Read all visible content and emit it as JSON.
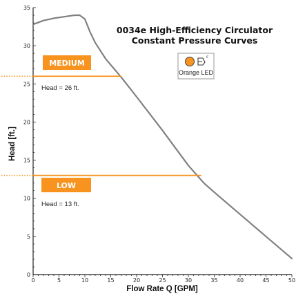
{
  "chart_data": {
    "type": "line",
    "title_line1": "0034e High-Efficiency Circulator",
    "title_line2": "Constant Pressure Curves",
    "xlabel": "Flow Rate Q [GPM]",
    "ylabel": "Head [ft.]",
    "xlim": [
      0,
      50
    ],
    "ylim": [
      0,
      35
    ],
    "x_ticks": [
      0,
      5,
      10,
      15,
      20,
      25,
      30,
      35,
      40,
      45,
      50
    ],
    "y_ticks": [
      0,
      5,
      10,
      15,
      20,
      25,
      30,
      35
    ],
    "grid": false,
    "max_curve": {
      "color": "#808080",
      "points": [
        [
          0,
          32.8
        ],
        [
          2,
          33.3
        ],
        [
          4,
          33.6
        ],
        [
          6,
          33.8
        ],
        [
          8,
          34.0
        ],
        [
          9,
          34.0
        ],
        [
          10,
          33.5
        ],
        [
          11,
          31.8
        ],
        [
          12,
          30.4
        ],
        [
          14,
          28.3
        ],
        [
          17,
          25.9
        ],
        [
          20,
          23.3
        ],
        [
          25,
          18.9
        ],
        [
          30,
          14.3
        ],
        [
          33,
          12.0
        ],
        [
          35,
          10.8
        ],
        [
          40,
          7.9
        ],
        [
          45,
          5.0
        ],
        [
          50,
          2.1
        ]
      ]
    },
    "series": [
      {
        "label": "MEDIUM",
        "head": 26,
        "annotation": "Head = 26 ft.",
        "x_end": 17,
        "color": "#f7931e"
      },
      {
        "label": "LOW",
        "head": 13,
        "annotation": "Head = 13 ft.",
        "x_end": 32.5,
        "color": "#f7931e"
      }
    ],
    "legend": {
      "text": "Orange LED",
      "position": "top-right",
      "led_color": "#f7931e"
    }
  }
}
